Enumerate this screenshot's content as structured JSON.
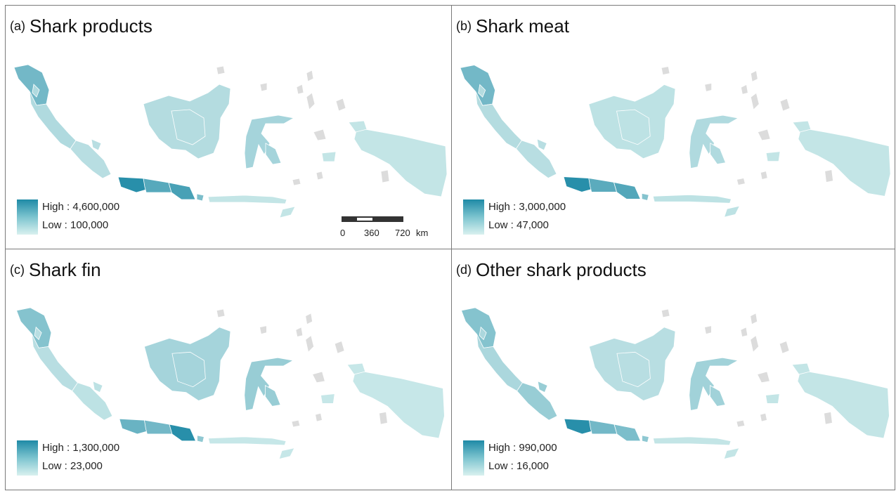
{
  "panels": [
    {
      "label": "(a)",
      "title": "Shark products",
      "legend": {
        "high": "High : 4,600,000",
        "low": "Low : 100,000"
      },
      "levels": {
        "sumatra_n": 0.55,
        "sumatra_w": 0.22,
        "sumatra_s": 0.18,
        "kalimantan": 0.2,
        "sulawesi": 0.28,
        "java_w": 0.95,
        "java_c": 0.7,
        "java_e": 0.78,
        "nusa": 0.12,
        "papua": 0.12,
        "bali": 0.5
      }
    },
    {
      "label": "(b)",
      "title": "Shark meat",
      "legend": {
        "high": "High : 3,000,000",
        "low": "Low : 47,000"
      },
      "levels": {
        "sumatra_n": 0.55,
        "sumatra_w": 0.2,
        "sumatra_s": 0.18,
        "kalimantan": 0.15,
        "sulawesi": 0.22,
        "java_w": 0.95,
        "java_c": 0.68,
        "java_e": 0.72,
        "nusa": 0.15,
        "papua": 0.12,
        "bali": 0.45
      }
    },
    {
      "label": "(c)",
      "title": "Shark fin",
      "legend": {
        "high": "High : 1,300,000",
        "low": "Low : 23,000"
      },
      "levels": {
        "sumatra_n": 0.45,
        "sumatra_w": 0.18,
        "sumatra_s": 0.15,
        "kalimantan": 0.28,
        "sulawesi": 0.35,
        "java_w": 0.6,
        "java_c": 0.55,
        "java_e": 0.95,
        "nusa": 0.1,
        "papua": 0.1,
        "bali": 0.4
      }
    },
    {
      "label": "(d)",
      "title": "Other shark products",
      "legend": {
        "high": "High : 990,000",
        "low": "Low : 16,000"
      },
      "levels": {
        "sumatra_n": 0.45,
        "sumatra_w": 0.25,
        "sumatra_s": 0.35,
        "kalimantan": 0.18,
        "sulawesi": 0.3,
        "java_w": 0.95,
        "java_c": 0.55,
        "java_e": 0.5,
        "nusa": 0.12,
        "papua": 0.12,
        "bali": 0.4
      }
    }
  ],
  "scale_bar": {
    "ticks": [
      "0",
      "360",
      "720"
    ],
    "unit": "km"
  },
  "colors": {
    "high": "#1f8aa6",
    "low": "#d9f1ef",
    "no_data": "#dcdcdc",
    "border": "#7a7a7a"
  }
}
